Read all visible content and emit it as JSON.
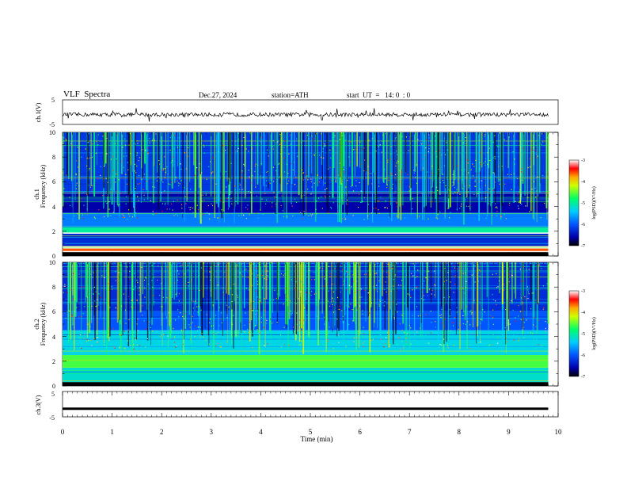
{
  "header": {
    "title": "VLF  Spectra",
    "date": "Dec.27, 2024",
    "station": "station=ATH",
    "start": "start  UT  =   14: 0  : 0"
  },
  "chart_data": [
    {
      "type": "line",
      "panel": "ch1-waveform",
      "ylabel": "ch.1(V)",
      "ylim": [
        -5,
        5
      ],
      "y_ticks": [
        "5",
        "-5"
      ],
      "xlim": [
        0,
        10
      ],
      "series": [
        {
          "color": "#000000",
          "x_range": [
            0,
            9.8
          ],
          "values_approx": "noisy oscillation around -1 V, amplitude about ±1 V"
        }
      ]
    },
    {
      "type": "heatmap",
      "panel": "ch1-spectrogram",
      "ylabel": "Frequency (kHz)",
      "ylabel2": "ch.1",
      "ylim": [
        0,
        10
      ],
      "y_ticks": [
        "0",
        "2",
        "4",
        "6",
        "8",
        "10"
      ],
      "xlim": [
        0,
        10
      ],
      "data_x_end": 9.8,
      "colorbar": {
        "label": "log(PSD)(V²/Hz)",
        "range": [
          -7,
          -3
        ],
        "ticks": [
          "-3",
          "-4",
          "-5",
          "-6",
          "-7"
        ]
      },
      "features": [
        {
          "kind": "band",
          "f_khz": [
            0,
            0.3
          ],
          "level": -7
        },
        {
          "kind": "band",
          "f_khz": [
            0.4,
            0.6
          ],
          "level": -3.6
        },
        {
          "kind": "band",
          "f_khz": [
            0.8,
            1.8
          ],
          "level": -6.3
        },
        {
          "kind": "band",
          "f_khz": [
            1.9,
            2.4
          ],
          "level": -5.0
        },
        {
          "kind": "band",
          "f_khz": [
            2.4,
            3.5
          ],
          "level": -5.8
        },
        {
          "kind": "band",
          "f_khz": [
            3.5,
            5.0
          ],
          "level": -6.6
        },
        {
          "kind": "band",
          "f_khz": [
            5.0,
            10.0
          ],
          "level": -6.2
        },
        {
          "kind": "sferics",
          "level": -4.8
        }
      ]
    },
    {
      "type": "heatmap",
      "panel": "ch2-spectrogram",
      "ylabel": "Frequency (kHz)",
      "ylabel2": "ch.2",
      "ylim": [
        0,
        10
      ],
      "y_ticks": [
        "0",
        "2",
        "4",
        "6",
        "8",
        "10"
      ],
      "xlim": [
        0,
        10
      ],
      "data_x_end": 9.8,
      "colorbar": {
        "label": "log(PSD)(V²/Hz)",
        "range": [
          -7,
          -3
        ],
        "ticks": [
          "-3",
          "-4",
          "-5",
          "-6",
          "-7"
        ]
      },
      "features": [
        {
          "kind": "band",
          "f_khz": [
            0,
            0.3
          ],
          "level": -7
        },
        {
          "kind": "band",
          "f_khz": [
            0.3,
            1.5
          ],
          "level": -5.2
        },
        {
          "kind": "band",
          "f_khz": [
            1.5,
            2.5
          ],
          "level": -4.6
        },
        {
          "kind": "band",
          "f_khz": [
            2.5,
            4.5
          ],
          "level": -5.3
        },
        {
          "kind": "band",
          "f_khz": [
            4.5,
            6.0
          ],
          "level": -6.0
        },
        {
          "kind": "band",
          "f_khz": [
            6.0,
            10.0
          ],
          "level": -6.3
        },
        {
          "kind": "sferics",
          "level": -4.6
        }
      ]
    },
    {
      "type": "line",
      "panel": "ch3-waveform",
      "ylabel": "ch.3(V)",
      "ylim": [
        -5,
        5
      ],
      "y_ticks": [
        "5",
        "-5"
      ],
      "xlim": [
        0,
        10
      ],
      "xlabel": "Time  (min)",
      "x_ticks": [
        "0",
        "1",
        "2",
        "3",
        "4",
        "5",
        "6",
        "7",
        "8",
        "9",
        "10"
      ],
      "series": [
        {
          "color": "#000000",
          "x_range": [
            0,
            9.8
          ],
          "values_approx": "flat near -2 V"
        }
      ]
    }
  ]
}
